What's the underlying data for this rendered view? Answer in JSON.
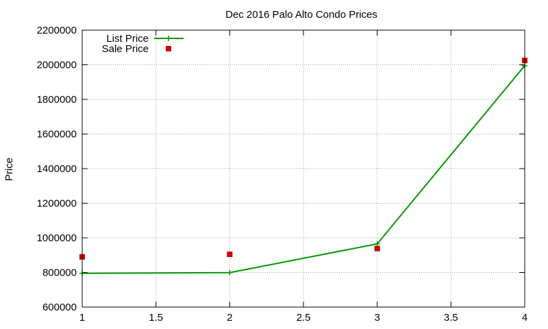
{
  "chart_data": {
    "type": "line",
    "title": "Dec 2016 Palo Alto Condo Prices",
    "xlabel": "",
    "ylabel": "Price",
    "xlim": [
      1,
      4
    ],
    "ylim": [
      600000,
      2200000
    ],
    "x_ticks": [
      "1",
      "1.5",
      "2",
      "2.5",
      "3",
      "3.5",
      "4"
    ],
    "y_ticks": [
      "600000",
      "800000",
      "1000000",
      "1200000",
      "1400000",
      "1600000",
      "1800000",
      "2000000",
      "2200000"
    ],
    "grid": true,
    "legend_position": "top-left",
    "series": [
      {
        "name": "List Price",
        "type": "line",
        "color": "#009900",
        "marker": "plus",
        "x": [
          1,
          2,
          3,
          4
        ],
        "y": [
          795000,
          799000,
          965000,
          1995000
        ]
      },
      {
        "name": "Sale Price",
        "type": "scatter",
        "color": "#cc0000",
        "marker": "square",
        "x": [
          1,
          2,
          3,
          4
        ],
        "y": [
          890000,
          905000,
          938000,
          2025000
        ]
      }
    ]
  }
}
